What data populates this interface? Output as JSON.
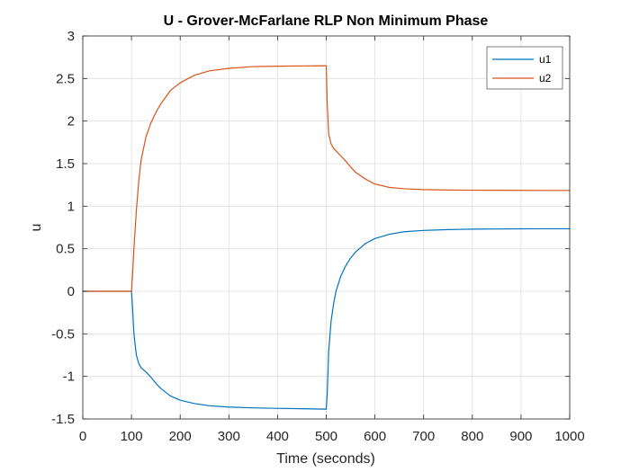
{
  "chart_data": {
    "type": "line",
    "title": "U - Grover-McFarlane RLP Non Minimum Phase",
    "xlabel": "Time (seconds)",
    "ylabel": "u",
    "xlim": [
      0,
      1000
    ],
    "ylim": [
      -1.5,
      3
    ],
    "x_ticks": [
      "0",
      "100",
      "200",
      "300",
      "400",
      "500",
      "600",
      "700",
      "800",
      "900",
      "1000"
    ],
    "y_ticks": [
      "-1.5",
      "-1",
      "-0.5",
      "0",
      "0.5",
      "1",
      "1.5",
      "2",
      "2.5",
      "3"
    ],
    "grid": true,
    "legend_position": "top-right",
    "series": [
      {
        "name": "u1",
        "color": "#0072BD",
        "x": [
          0,
          100,
          102,
          105,
          110,
          115,
          120,
          130,
          140,
          150,
          160,
          180,
          200,
          230,
          260,
          300,
          350,
          400,
          450,
          500,
          502,
          505,
          510,
          515,
          520,
          530,
          540,
          550,
          560,
          580,
          600,
          630,
          660,
          700,
          750,
          800,
          850,
          900,
          950,
          1000
        ],
        "y": [
          0,
          0,
          -0.18,
          -0.5,
          -0.75,
          -0.85,
          -0.9,
          -0.95,
          -1.01,
          -1.08,
          -1.14,
          -1.23,
          -1.28,
          -1.32,
          -1.345,
          -1.36,
          -1.37,
          -1.375,
          -1.38,
          -1.385,
          -1.2,
          -0.7,
          -0.35,
          -0.15,
          0.0,
          0.18,
          0.3,
          0.39,
          0.46,
          0.56,
          0.62,
          0.67,
          0.7,
          0.715,
          0.725,
          0.73,
          0.732,
          0.734,
          0.735,
          0.735
        ]
      },
      {
        "name": "u2",
        "color": "#D95319",
        "x": [
          0,
          100,
          102,
          105,
          110,
          115,
          120,
          130,
          140,
          150,
          160,
          180,
          200,
          230,
          260,
          300,
          350,
          400,
          450,
          500,
          502,
          505,
          510,
          515,
          520,
          530,
          540,
          550,
          560,
          580,
          600,
          630,
          660,
          700,
          750,
          800,
          850,
          900,
          950,
          1000
        ],
        "y": [
          0,
          0,
          0.18,
          0.5,
          0.95,
          1.3,
          1.55,
          1.82,
          1.98,
          2.1,
          2.2,
          2.36,
          2.45,
          2.54,
          2.59,
          2.62,
          2.64,
          2.645,
          2.648,
          2.65,
          2.2,
          1.85,
          1.73,
          1.68,
          1.65,
          1.59,
          1.53,
          1.46,
          1.4,
          1.32,
          1.26,
          1.22,
          1.205,
          1.195,
          1.19,
          1.188,
          1.187,
          1.186,
          1.185,
          1.185
        ]
      }
    ]
  }
}
